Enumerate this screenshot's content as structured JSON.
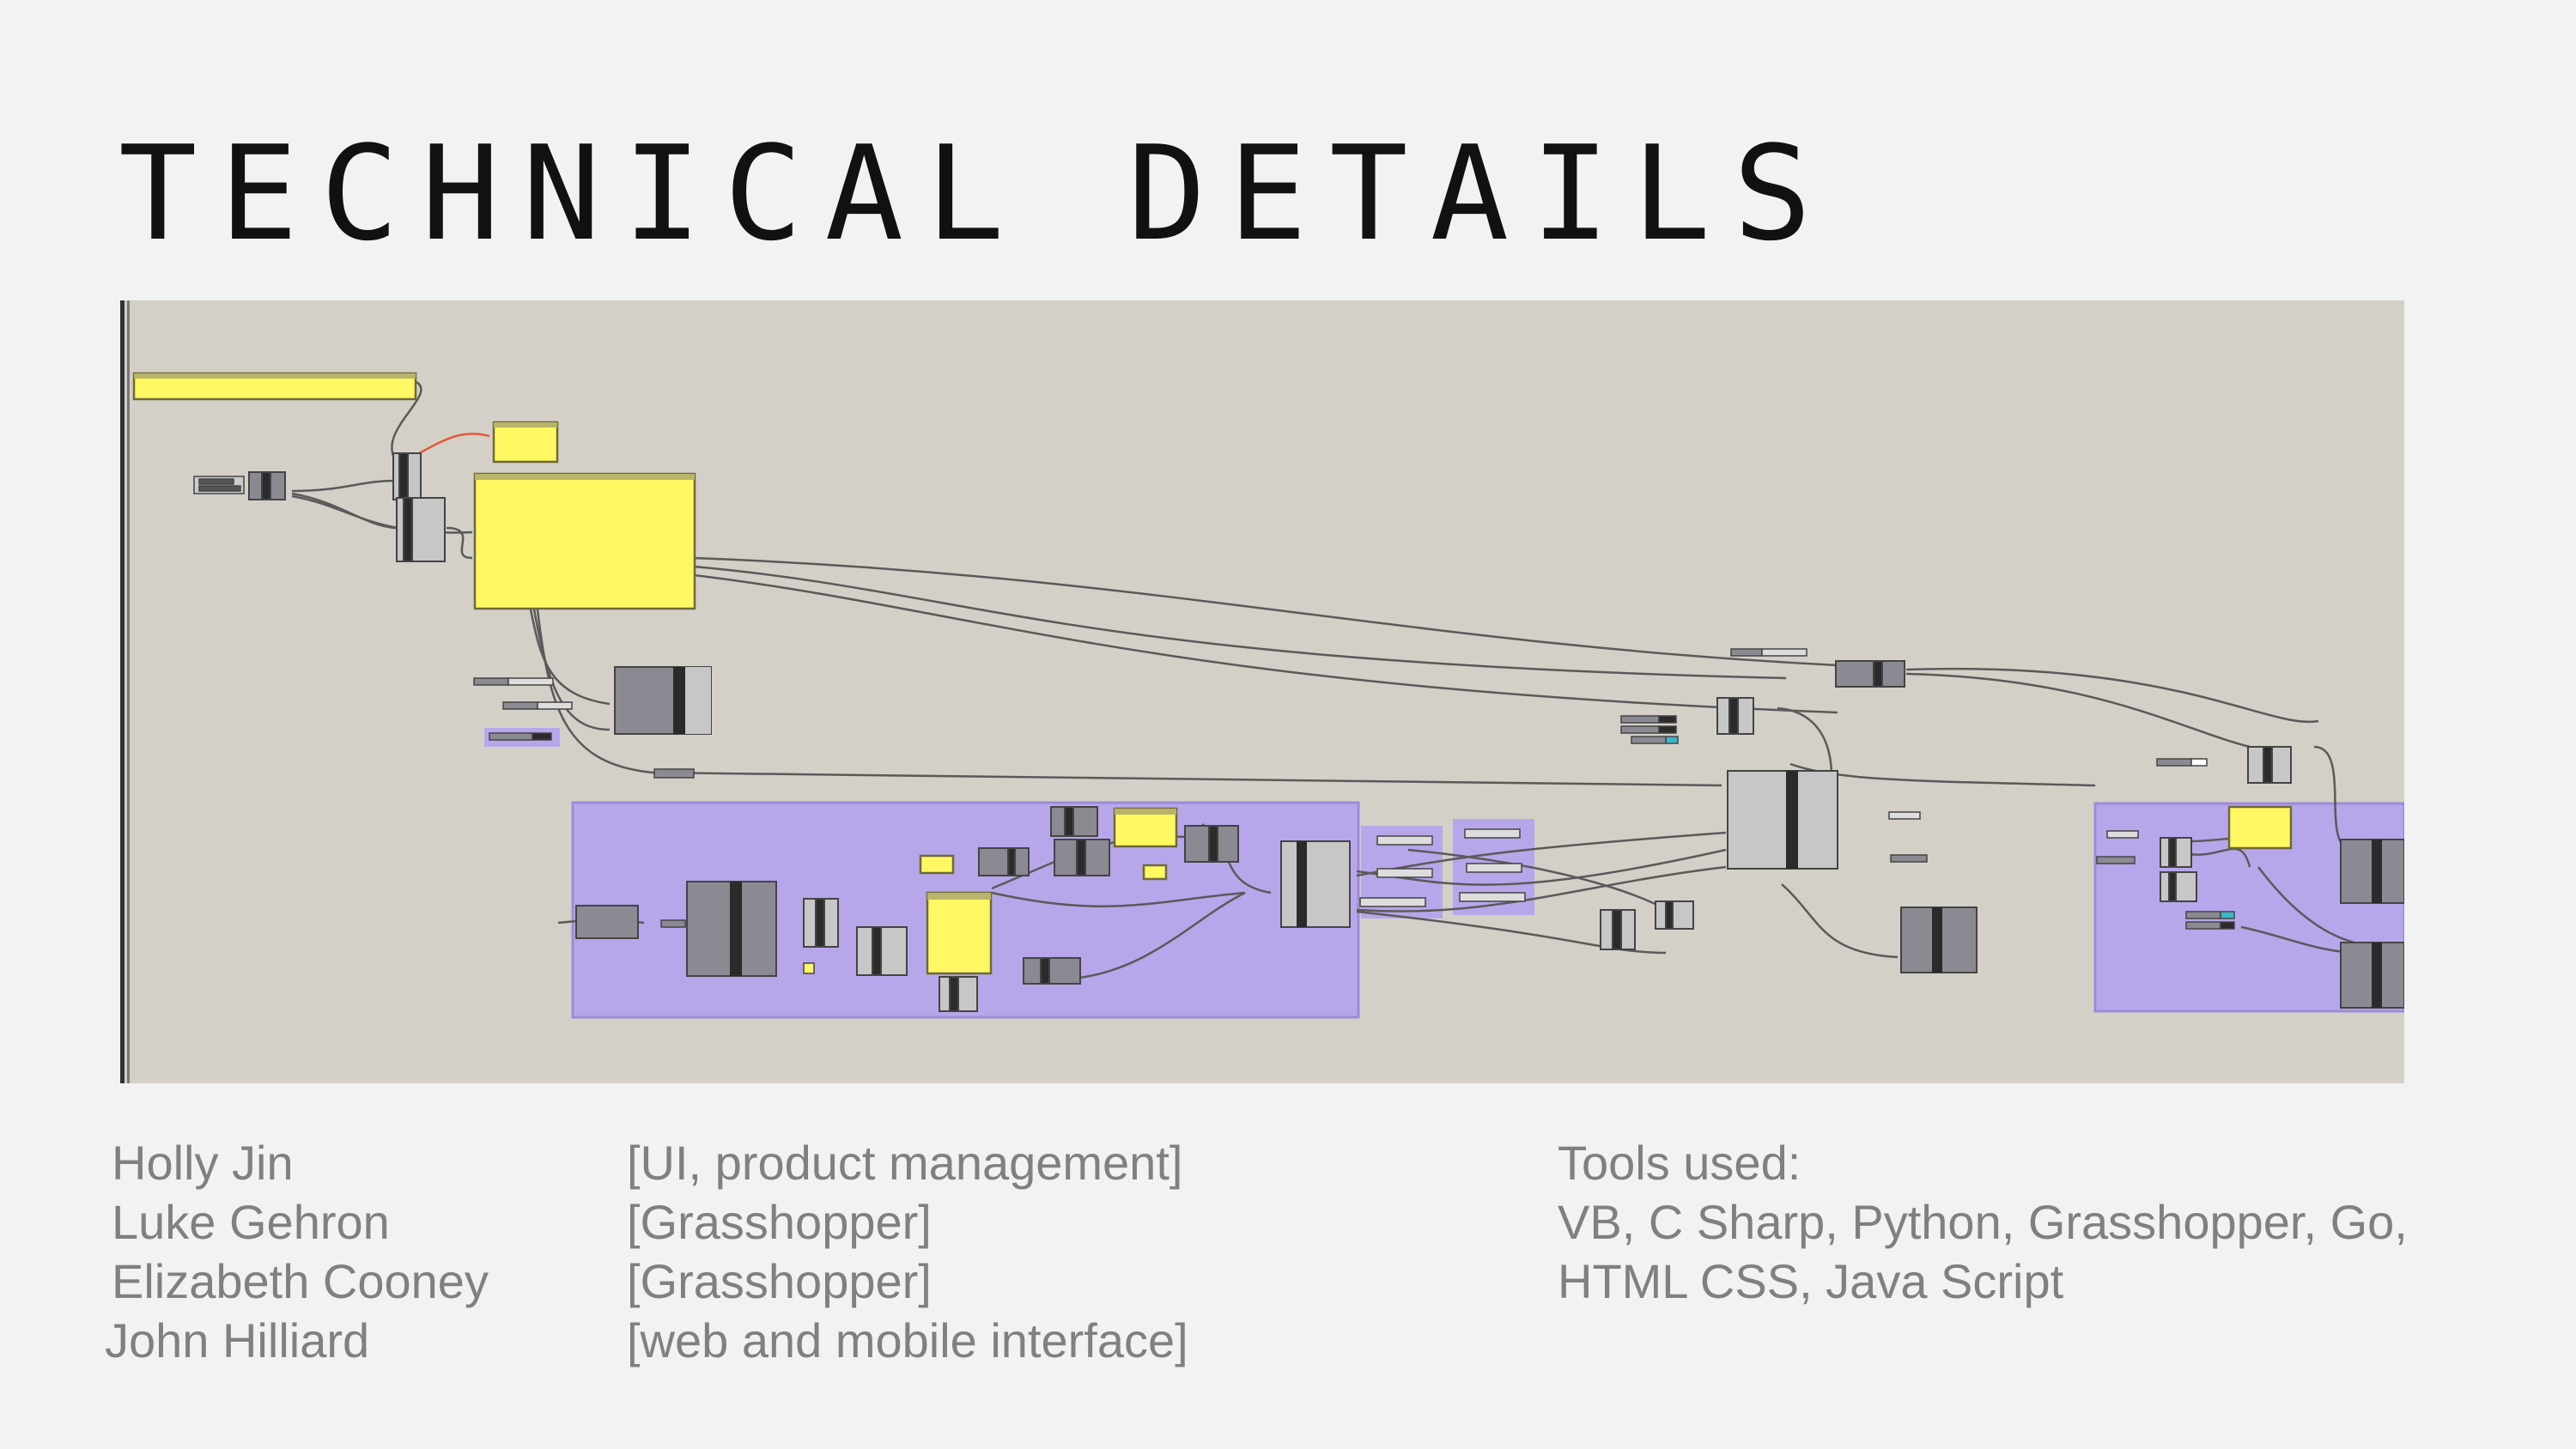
{
  "slide": {
    "title": "TECHNICAL DETAILS"
  },
  "team": [
    {
      "name": "Holly Jin",
      "role": "[UI, product management]"
    },
    {
      "name": "Luke Gehron",
      "role": "[Grasshopper]"
    },
    {
      "name": "Elizabeth Cooney",
      "role": "[Grasshopper]"
    },
    {
      "name": "John Hilliard",
      "role": "[web and mobile interface]"
    }
  ],
  "tools": {
    "heading": "Tools used:",
    "line1": "VB, C Sharp, Python, Grasshopper, Go,",
    "line2": "HTML CSS, Java Script"
  },
  "colors": {
    "canvas": "#d4d0c8",
    "group": "#b8a6ea",
    "panel": "#fff862",
    "component": "#8b8a93",
    "wire": "#5a5a5a"
  }
}
